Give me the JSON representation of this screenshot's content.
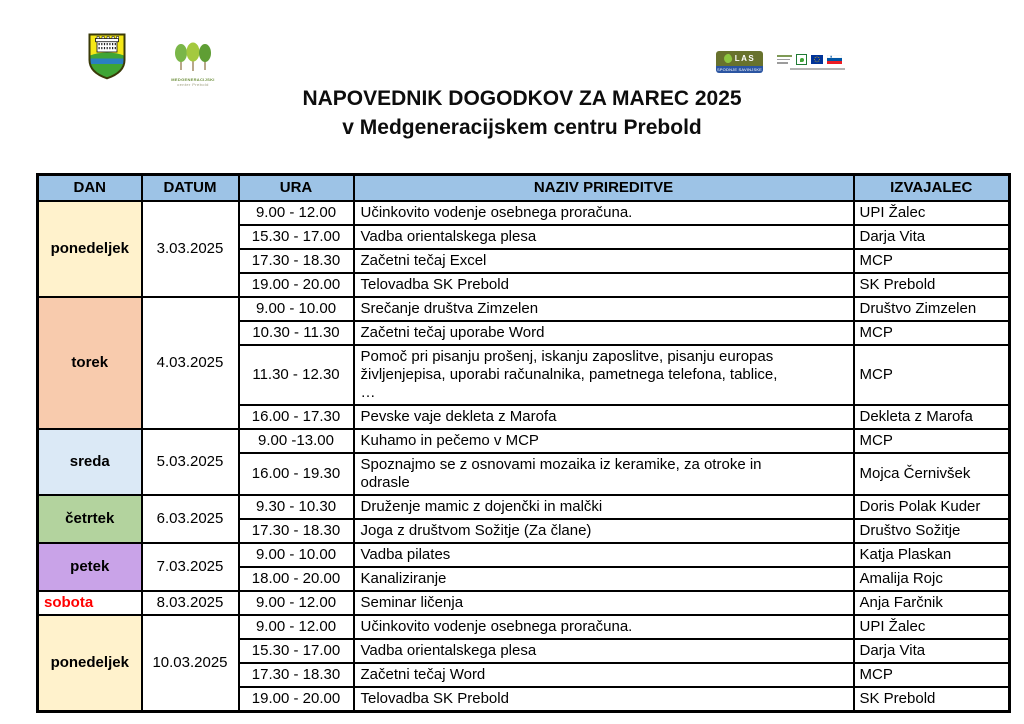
{
  "title": {
    "line1": "NAPOVEDNIK DOGODKOV ZA MAREC 2025",
    "line2": "v Medgeneracijskem centru Prebold"
  },
  "header_logos": {
    "coat_of_arms": "prebold-coat-of-arms",
    "mcp_logo": {
      "icon": "three-trees-icon",
      "line1": "MEDGENERACIJSKI",
      "line2": "center Prebold"
    },
    "las_logo": {
      "name": "LAS",
      "subtitle": "SPODNJE SAVINJSKE DOLINE"
    },
    "eu_logos": [
      "institution-text",
      "prp-box-icon",
      "eu-flag-icon",
      "slovenia-flag-icon"
    ]
  },
  "colors": {
    "table_header_bg": "#9DC3E6",
    "border": "#000000",
    "saturday_text": "#FF0000",
    "monday_bg": "#FFF2CC",
    "tuesday_bg": "#F8CBAD",
    "wednesday_bg": "#DBE9F6",
    "thursday_bg": "#B3D39E",
    "friday_bg": "#C9A3E8"
  },
  "table": {
    "headers": [
      "DAN",
      "DATUM",
      "URA",
      "NAZIV PRIREDITVE",
      "IZVAJALEC"
    ],
    "groups": [
      {
        "day": "ponedeljek",
        "date": "3.03.2025",
        "bg": "#FFF2CC",
        "events": [
          {
            "time": "9.00 - 12.00",
            "name": "Učinkovito vodenje osebnega proračuna.",
            "provider": "UPI Žalec"
          },
          {
            "time": "15.30 - 17.00",
            "name": "Vadba orientalskega plesa",
            "provider": "Darja Vita"
          },
          {
            "time": "17.30 - 18.30",
            "name": "Začetni tečaj Excel",
            "provider": "MCP"
          },
          {
            "time": "19.00 - 20.00",
            "name": "Telovadba SK Prebold",
            "provider": "SK Prebold"
          }
        ]
      },
      {
        "day": "torek",
        "date": "4.03.2025",
        "bg": "#F8CBAD",
        "events": [
          {
            "time": "9.00 - 10.00",
            "name": "Srečanje društva Zimzelen",
            "provider": "Društvo Zimzelen"
          },
          {
            "time": "10.30 - 11.30",
            "name": "Začetni tečaj uporabe Word",
            "provider": "MCP"
          },
          {
            "time": "11.30 - 12.30",
            "name": "Pomoč pri pisanju prošenj, iskanju zaposlitve, pisanju europas\nživljenjepisa, uporabi računalnika, pametnega telefona, tablice,\n…",
            "provider": "MCP",
            "tall": true
          },
          {
            "time": "16.00 - 17.30",
            "name": "Pevske vaje dekleta z Marofa",
            "provider": "Dekleta z Marofa"
          }
        ]
      },
      {
        "day": "sreda",
        "date": "5.03.2025",
        "bg": "#DBE9F6",
        "events": [
          {
            "time": "9.00 -13.00",
            "name": "Kuhamo in pečemo v MCP",
            "provider": "MCP"
          },
          {
            "time": "16.00 - 19.30",
            "name": "Spoznajmo se z osnovami mozaika iz keramike, za otroke in\nodrasle",
            "provider": "Mojca Černivšek",
            "tall": true
          }
        ]
      },
      {
        "day": "četrtek",
        "date": "6.03.2025",
        "bg": "#B3D39E",
        "events": [
          {
            "time": "9.30 - 10.30",
            "name": "Druženje mamic z dojenčki in malčki",
            "provider": "Doris Polak Kuder"
          },
          {
            "time": "17.30 - 18.30",
            "name": "Joga z društvom Sožitje (Za člane)",
            "provider": "Društvo Sožitje"
          }
        ]
      },
      {
        "day": "petek",
        "date": "7.03.2025",
        "bg": "#C9A3E8",
        "events": [
          {
            "time": "9.00 - 10.00",
            "name": "Vadba pilates",
            "provider": "Katja Plaskan"
          },
          {
            "time": "18.00 - 20.00",
            "name": "Kanaliziranje",
            "provider": "Amalija Rojc"
          }
        ]
      },
      {
        "day": "sobota",
        "date": "8.03.2025",
        "bg": "#FFFFFF",
        "day_color": "#FF0000",
        "day_align": "left",
        "events": [
          {
            "time": "9.00 - 12.00",
            "name": "Seminar ličenja",
            "provider": "Anja Farčnik"
          }
        ]
      },
      {
        "day": "ponedeljek",
        "date": "10.03.2025",
        "bg": "#FFF2CC",
        "events": [
          {
            "time": "9.00 - 12.00",
            "name": "Učinkovito vodenje osebnega proračuna.",
            "provider": "UPI Žalec"
          },
          {
            "time": "15.30 - 17.00",
            "name": "Vadba orientalskega plesa",
            "provider": "Darja Vita"
          },
          {
            "time": "17.30 - 18.30",
            "name": "Začetni tečaj Word",
            "provider": "MCP"
          },
          {
            "time": "19.00 - 20.00",
            "name": "Telovadba SK Prebold",
            "provider": "SK Prebold"
          }
        ]
      }
    ]
  }
}
